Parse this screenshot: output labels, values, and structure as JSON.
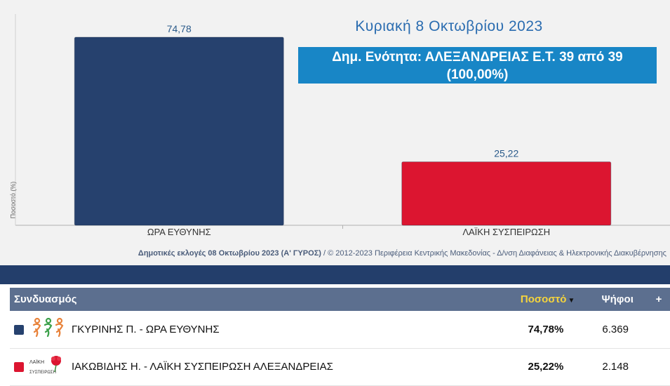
{
  "header": {
    "date_title": "Κυριακή 8 Οκτωβρίου 2023",
    "info_line1": "Δημ. Ενότητα: ΑΛΕΞΑΝΔΡΕΙΑΣ Ε.Τ. 39 από 39",
    "info_line2": "(100,00%)"
  },
  "chart_data": {
    "type": "bar",
    "categories": [
      "ΩΡΑ ΕΥΘΥΝΗΣ",
      "ΛΑΪΚΗ ΣΥΣΠΕΙΡΩΣΗ"
    ],
    "values": [
      74.78,
      25.22
    ],
    "value_labels": [
      "74,78",
      "25,22"
    ],
    "colors": [
      "#26416e",
      "#dc1530"
    ],
    "ylabel": "Ποσοστό (%)",
    "ylim": [
      0,
      80
    ],
    "grid": false
  },
  "footer": {
    "bold_text": "Δημοτικές εκλογές 08 Οκτωβρίου 2023 (Α' ΓΥΡΟΣ)",
    "rest_text": " / © 2012-2023 Περιφέρεια Κεντρικής Μακεδονίας - Δ/νση Διαφάνειας & Ηλεκτρονικής Διακυβέρνησης"
  },
  "table": {
    "col_combination": "Συνδυασμός",
    "col_percent": "Ποσοστό",
    "col_votes": "Ψήφοι",
    "col_plus": "+",
    "rows": [
      {
        "name": "ΓΚΥΡΙΝΗΣ Π. - ΩΡΑ ΕΥΘΥΝΗΣ",
        "percent": "74,78%",
        "votes": "6.369",
        "color": "#26416e",
        "logo_icon": "people-figures-logo-icon"
      },
      {
        "name": "ΙΑΚΩΒΙΔΗΣ Η. - ΛΑΪΚΗ ΣΥΣΠΕΙΡΩΣΗ ΑΛΕΞΑΝΔΡΕΙΑΣ",
        "percent": "25,22%",
        "votes": "2.148",
        "color": "#dc1530",
        "logo_icon": "carnation-logo-icon",
        "logo_text": "ΛΑΪΚΗ ΣΥΣΠΕΙΡΩΣΗ"
      }
    ]
  }
}
